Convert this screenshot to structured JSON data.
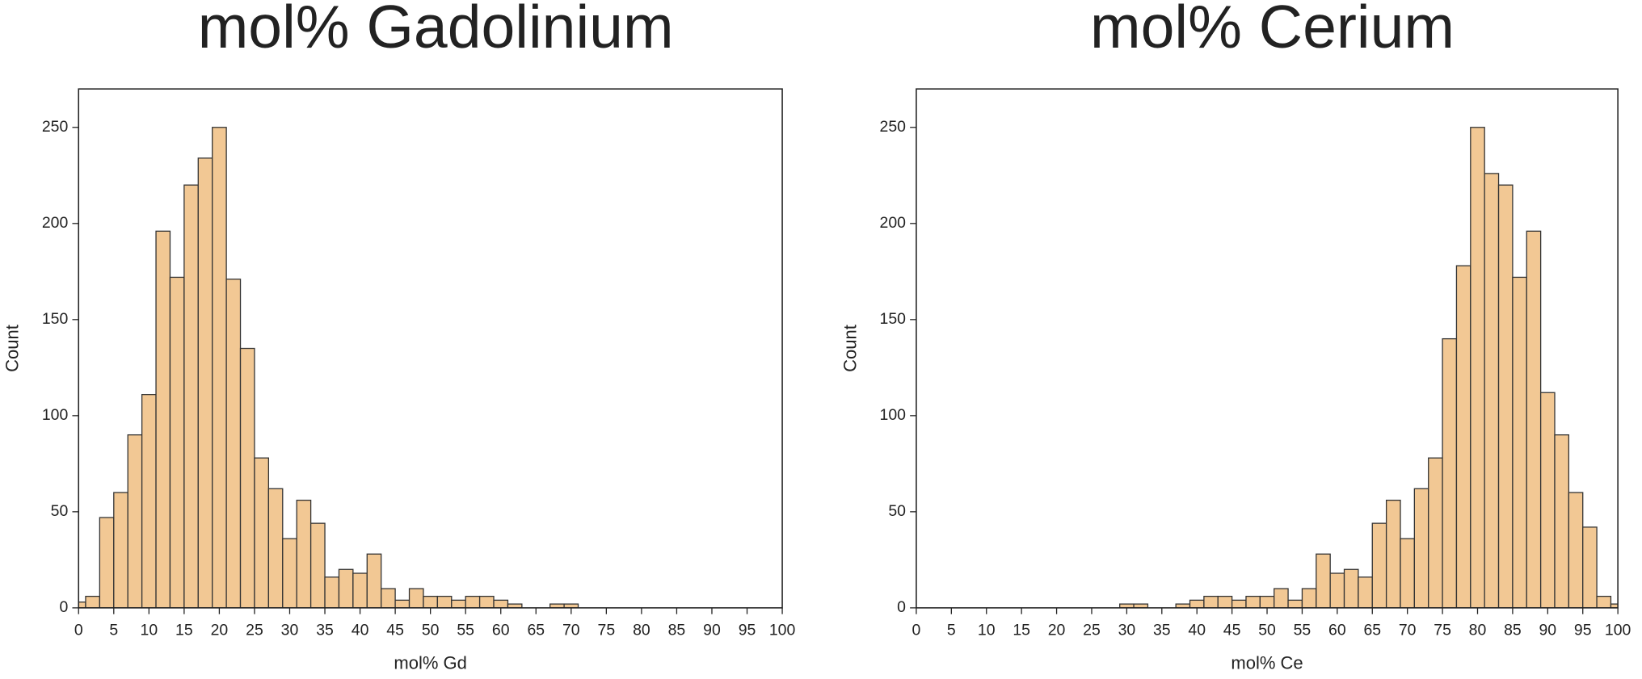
{
  "chart_data": [
    {
      "type": "histogram",
      "title": "mol% Gadolinium",
      "x_label": "mol% Gd",
      "y_label": "Count",
      "bins": [
        -1,
        1,
        3,
        5,
        7,
        9,
        11,
        13,
        15,
        17,
        19,
        21,
        23,
        25,
        27,
        29,
        31,
        33,
        35,
        37,
        39,
        41,
        43,
        45,
        47,
        49,
        51,
        53,
        55,
        57,
        59,
        61,
        63,
        65,
        67,
        69,
        71
      ],
      "values": [
        3,
        6,
        47,
        60,
        90,
        111,
        196,
        172,
        220,
        234,
        250,
        171,
        135,
        78,
        62,
        36,
        56,
        44,
        16,
        20,
        18,
        28,
        10,
        4,
        10,
        6,
        6,
        4,
        6,
        6,
        4,
        2,
        0,
        0,
        2,
        2
      ],
      "color": "#f2c894",
      "xlim": [
        0,
        100
      ],
      "xticks": [
        0,
        5,
        10,
        15,
        20,
        25,
        30,
        35,
        40,
        45,
        50,
        55,
        60,
        65,
        70,
        75,
        80,
        85,
        90,
        95,
        100
      ],
      "ylim": [
        0,
        270
      ],
      "yticks": [
        0,
        50,
        100,
        150,
        200,
        250
      ]
    },
    {
      "type": "histogram",
      "title": "mol% Cerium",
      "x_label": "mol% Ce",
      "y_label": "Count",
      "bins": [
        29,
        31,
        33,
        35,
        37,
        39,
        41,
        43,
        45,
        47,
        49,
        51,
        53,
        55,
        57,
        59,
        61,
        63,
        65,
        67,
        69,
        71,
        73,
        75,
        77,
        79,
        81,
        83,
        85,
        87,
        89,
        91,
        93,
        95,
        97,
        99,
        101
      ],
      "values": [
        2,
        2,
        0,
        0,
        2,
        4,
        6,
        6,
        4,
        6,
        6,
        10,
        4,
        10,
        28,
        18,
        20,
        16,
        44,
        56,
        36,
        62,
        78,
        140,
        178,
        250,
        226,
        220,
        172,
        196,
        112,
        90,
        60,
        42,
        6,
        2
      ],
      "color": "#f2c894",
      "xlim": [
        0,
        100
      ],
      "xticks": [
        0,
        5,
        10,
        15,
        20,
        25,
        30,
        35,
        40,
        45,
        50,
        55,
        60,
        65,
        70,
        75,
        80,
        85,
        90,
        95,
        100
      ],
      "ylim": [
        0,
        270
      ],
      "yticks": [
        0,
        50,
        100,
        150,
        200,
        250
      ]
    }
  ]
}
